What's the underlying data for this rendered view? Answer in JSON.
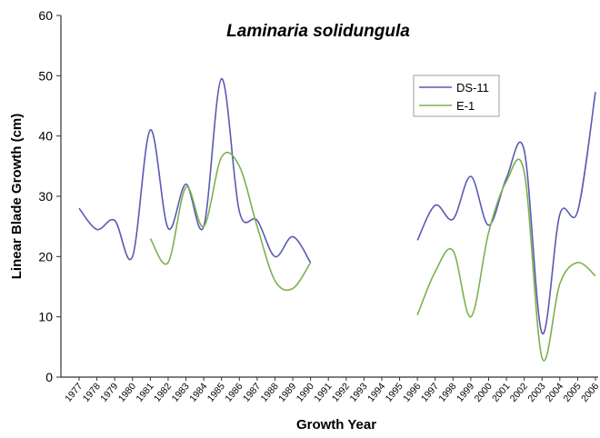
{
  "chart_data": {
    "type": "line",
    "title": "Laminaria solidungula",
    "x_label": "Growth Year",
    "y_label": "Linear Blade Growth (cm)",
    "categories": [
      "1977",
      "1978",
      "1979",
      "1980",
      "1981",
      "1982",
      "1983",
      "1984",
      "1985",
      "1986",
      "1987",
      "1988",
      "1989",
      "1990",
      "1991",
      "1992",
      "1993",
      "1994",
      "1995",
      "1996",
      "1997",
      "1998",
      "1999",
      "2000",
      "2001",
      "2002",
      "2003",
      "2004",
      "2005",
      "2006"
    ],
    "series": [
      {
        "name": "DS-11",
        "color": "#5a5ab4",
        "values": [
          28,
          24.5,
          26,
          20,
          41,
          24.7,
          32,
          25,
          49.5,
          27.5,
          26,
          20,
          23.3,
          19,
          null,
          null,
          null,
          null,
          null,
          22.7,
          28.5,
          26.2,
          33.3,
          25.2,
          33,
          37.6,
          7.3,
          27,
          27.5,
          47.3
        ]
      },
      {
        "name": "E-1",
        "color": "#7ab24e",
        "values": [
          null,
          null,
          null,
          null,
          23,
          19,
          31.5,
          25,
          36.5,
          35,
          25,
          16,
          14.7,
          19,
          null,
          null,
          null,
          null,
          null,
          10.3,
          17.5,
          21,
          10,
          24,
          32.5,
          34,
          3.2,
          15.5,
          19,
          16.8
        ]
      }
    ],
    "ylim": [
      0,
      60
    ],
    "yticks": [
      0,
      10,
      20,
      30,
      40,
      50,
      60
    ],
    "grid": false,
    "legend": "upper right"
  }
}
